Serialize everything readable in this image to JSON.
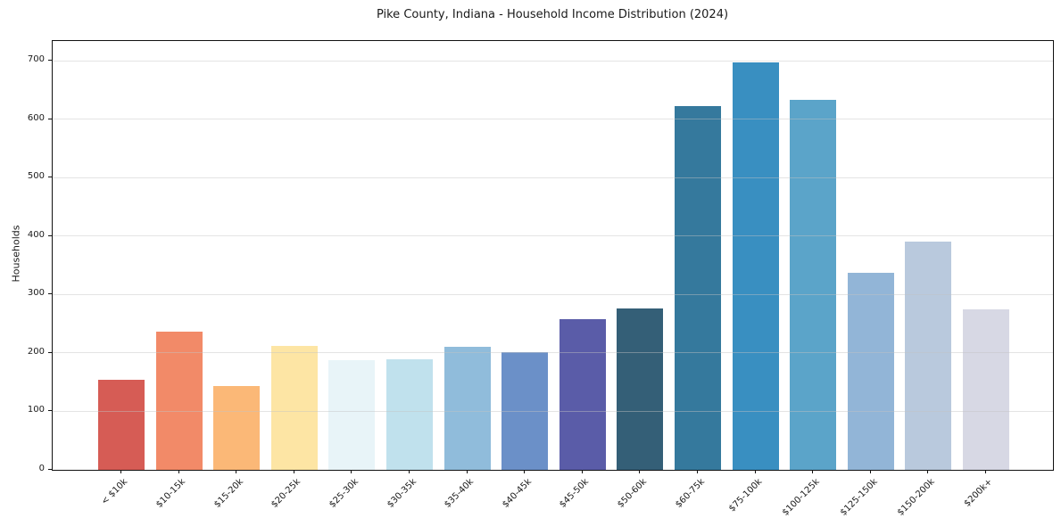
{
  "title": "Pike County, Indiana - Household Income Distribution (2024)",
  "chart_data": {
    "type": "bar",
    "title": "Pike County, Indiana - Household Income Distribution (2024)",
    "xlabel": "",
    "ylabel": "Households",
    "categories": [
      "< $10k",
      "$10-15k",
      "$15-20k",
      "$20-25k",
      "$25-30k",
      "$30-35k",
      "$35-40k",
      "$40-45k",
      "$45-50k",
      "$50-60k",
      "$60-75k",
      "$75-100k",
      "$100-125k",
      "$125-150k",
      "$150-200k",
      "$200k+"
    ],
    "values": [
      154,
      236,
      144,
      212,
      187,
      189,
      211,
      202,
      258,
      276,
      622,
      697,
      634,
      338,
      391,
      274
    ],
    "bar_colors": [
      "#d65c55",
      "#f28a68",
      "#fbb877",
      "#fde5a4",
      "#e8f4f8",
      "#c0e1ed",
      "#90bcdb",
      "#6b90c8",
      "#5a5ca8",
      "#345f77",
      "#35799d",
      "#398fc1",
      "#5ba4c9",
      "#92b5d7",
      "#b9c9dd",
      "#d7d8e4"
    ],
    "yticks": [
      0,
      100,
      200,
      300,
      400,
      500,
      600,
      700
    ],
    "ylim": [
      0,
      734
    ],
    "grid": "horizontal-gridlines-over-bars",
    "legend": "none",
    "background": "#ffffff"
  }
}
